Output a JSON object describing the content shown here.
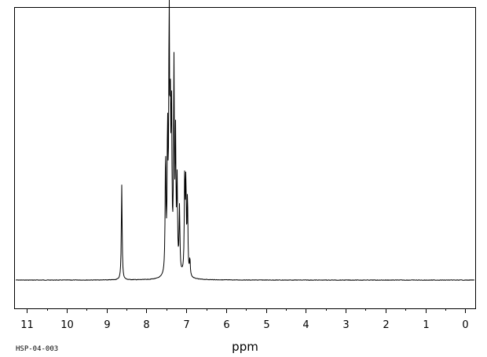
{
  "sample_id": "HSP-04-003",
  "chart_data": {
    "type": "line",
    "xlabel": "ppm",
    "ylabel": "",
    "title": "",
    "x_reversed": true,
    "xlim": [
      11.3,
      -0.25
    ],
    "ylim": [
      0,
      1.0
    ],
    "baseline": 0.1,
    "grid": false,
    "x_major_ticks": [
      11,
      10,
      9,
      8,
      7,
      6,
      5,
      4,
      3,
      2,
      1,
      0
    ],
    "x_tick_labels": [
      "11",
      "10",
      "9",
      "8",
      "7",
      "6",
      "5",
      "4",
      "3",
      "2",
      "1",
      "0"
    ],
    "x_minor_step": 0.5,
    "peaks": [
      {
        "ppm": 8.62,
        "height": 0.445
      },
      {
        "ppm": 7.52,
        "height": 0.53
      },
      {
        "ppm": 7.47,
        "height": 0.6
      },
      {
        "ppm": 7.43,
        "height": 1.0
      },
      {
        "ppm": 7.4,
        "height": 0.61
      },
      {
        "ppm": 7.37,
        "height": 0.65
      },
      {
        "ppm": 7.31,
        "height": 0.83
      },
      {
        "ppm": 7.27,
        "height": 0.56
      },
      {
        "ppm": 7.23,
        "height": 0.41
      },
      {
        "ppm": 7.17,
        "height": 0.33
      },
      {
        "ppm": 7.04,
        "height": 0.45
      },
      {
        "ppm": 7.01,
        "height": 0.42
      },
      {
        "ppm": 6.97,
        "height": 0.38
      },
      {
        "ppm": 6.91,
        "height": 0.16
      }
    ]
  }
}
